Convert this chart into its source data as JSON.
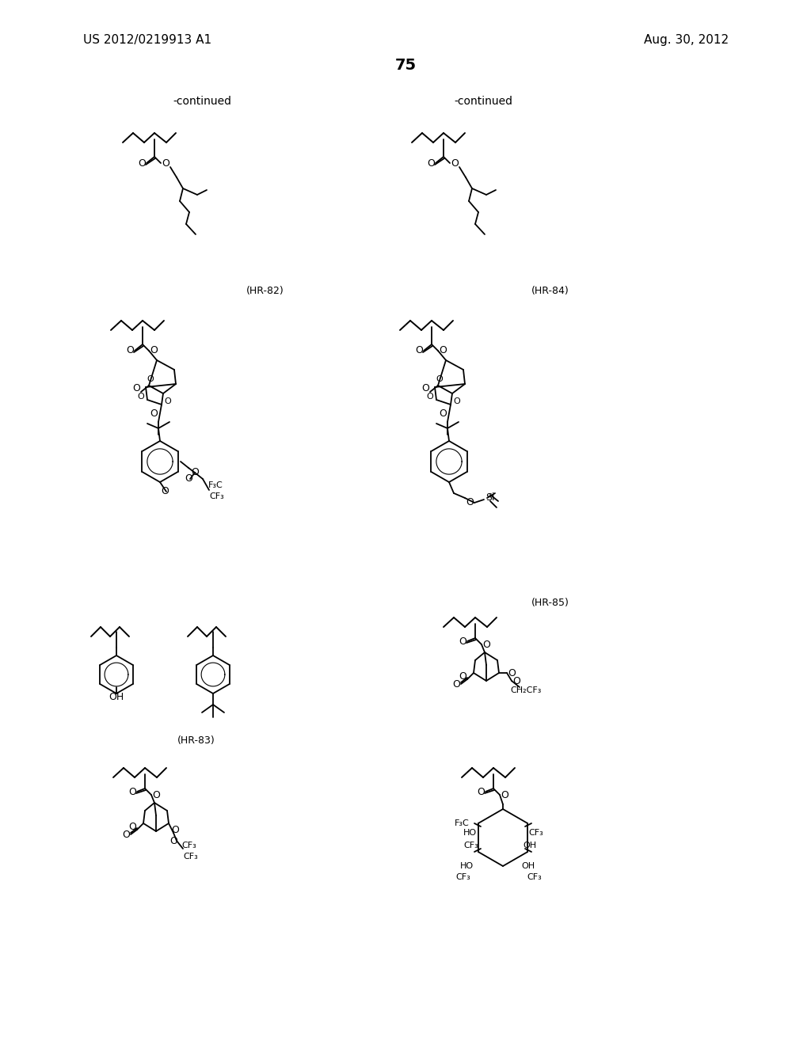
{
  "background": "#ffffff",
  "header_left": "US 2012/0219913 A1",
  "header_right": "Aug. 30, 2012",
  "page_number": "75",
  "figsize": [
    10.24,
    13.2
  ],
  "dpi": 100
}
